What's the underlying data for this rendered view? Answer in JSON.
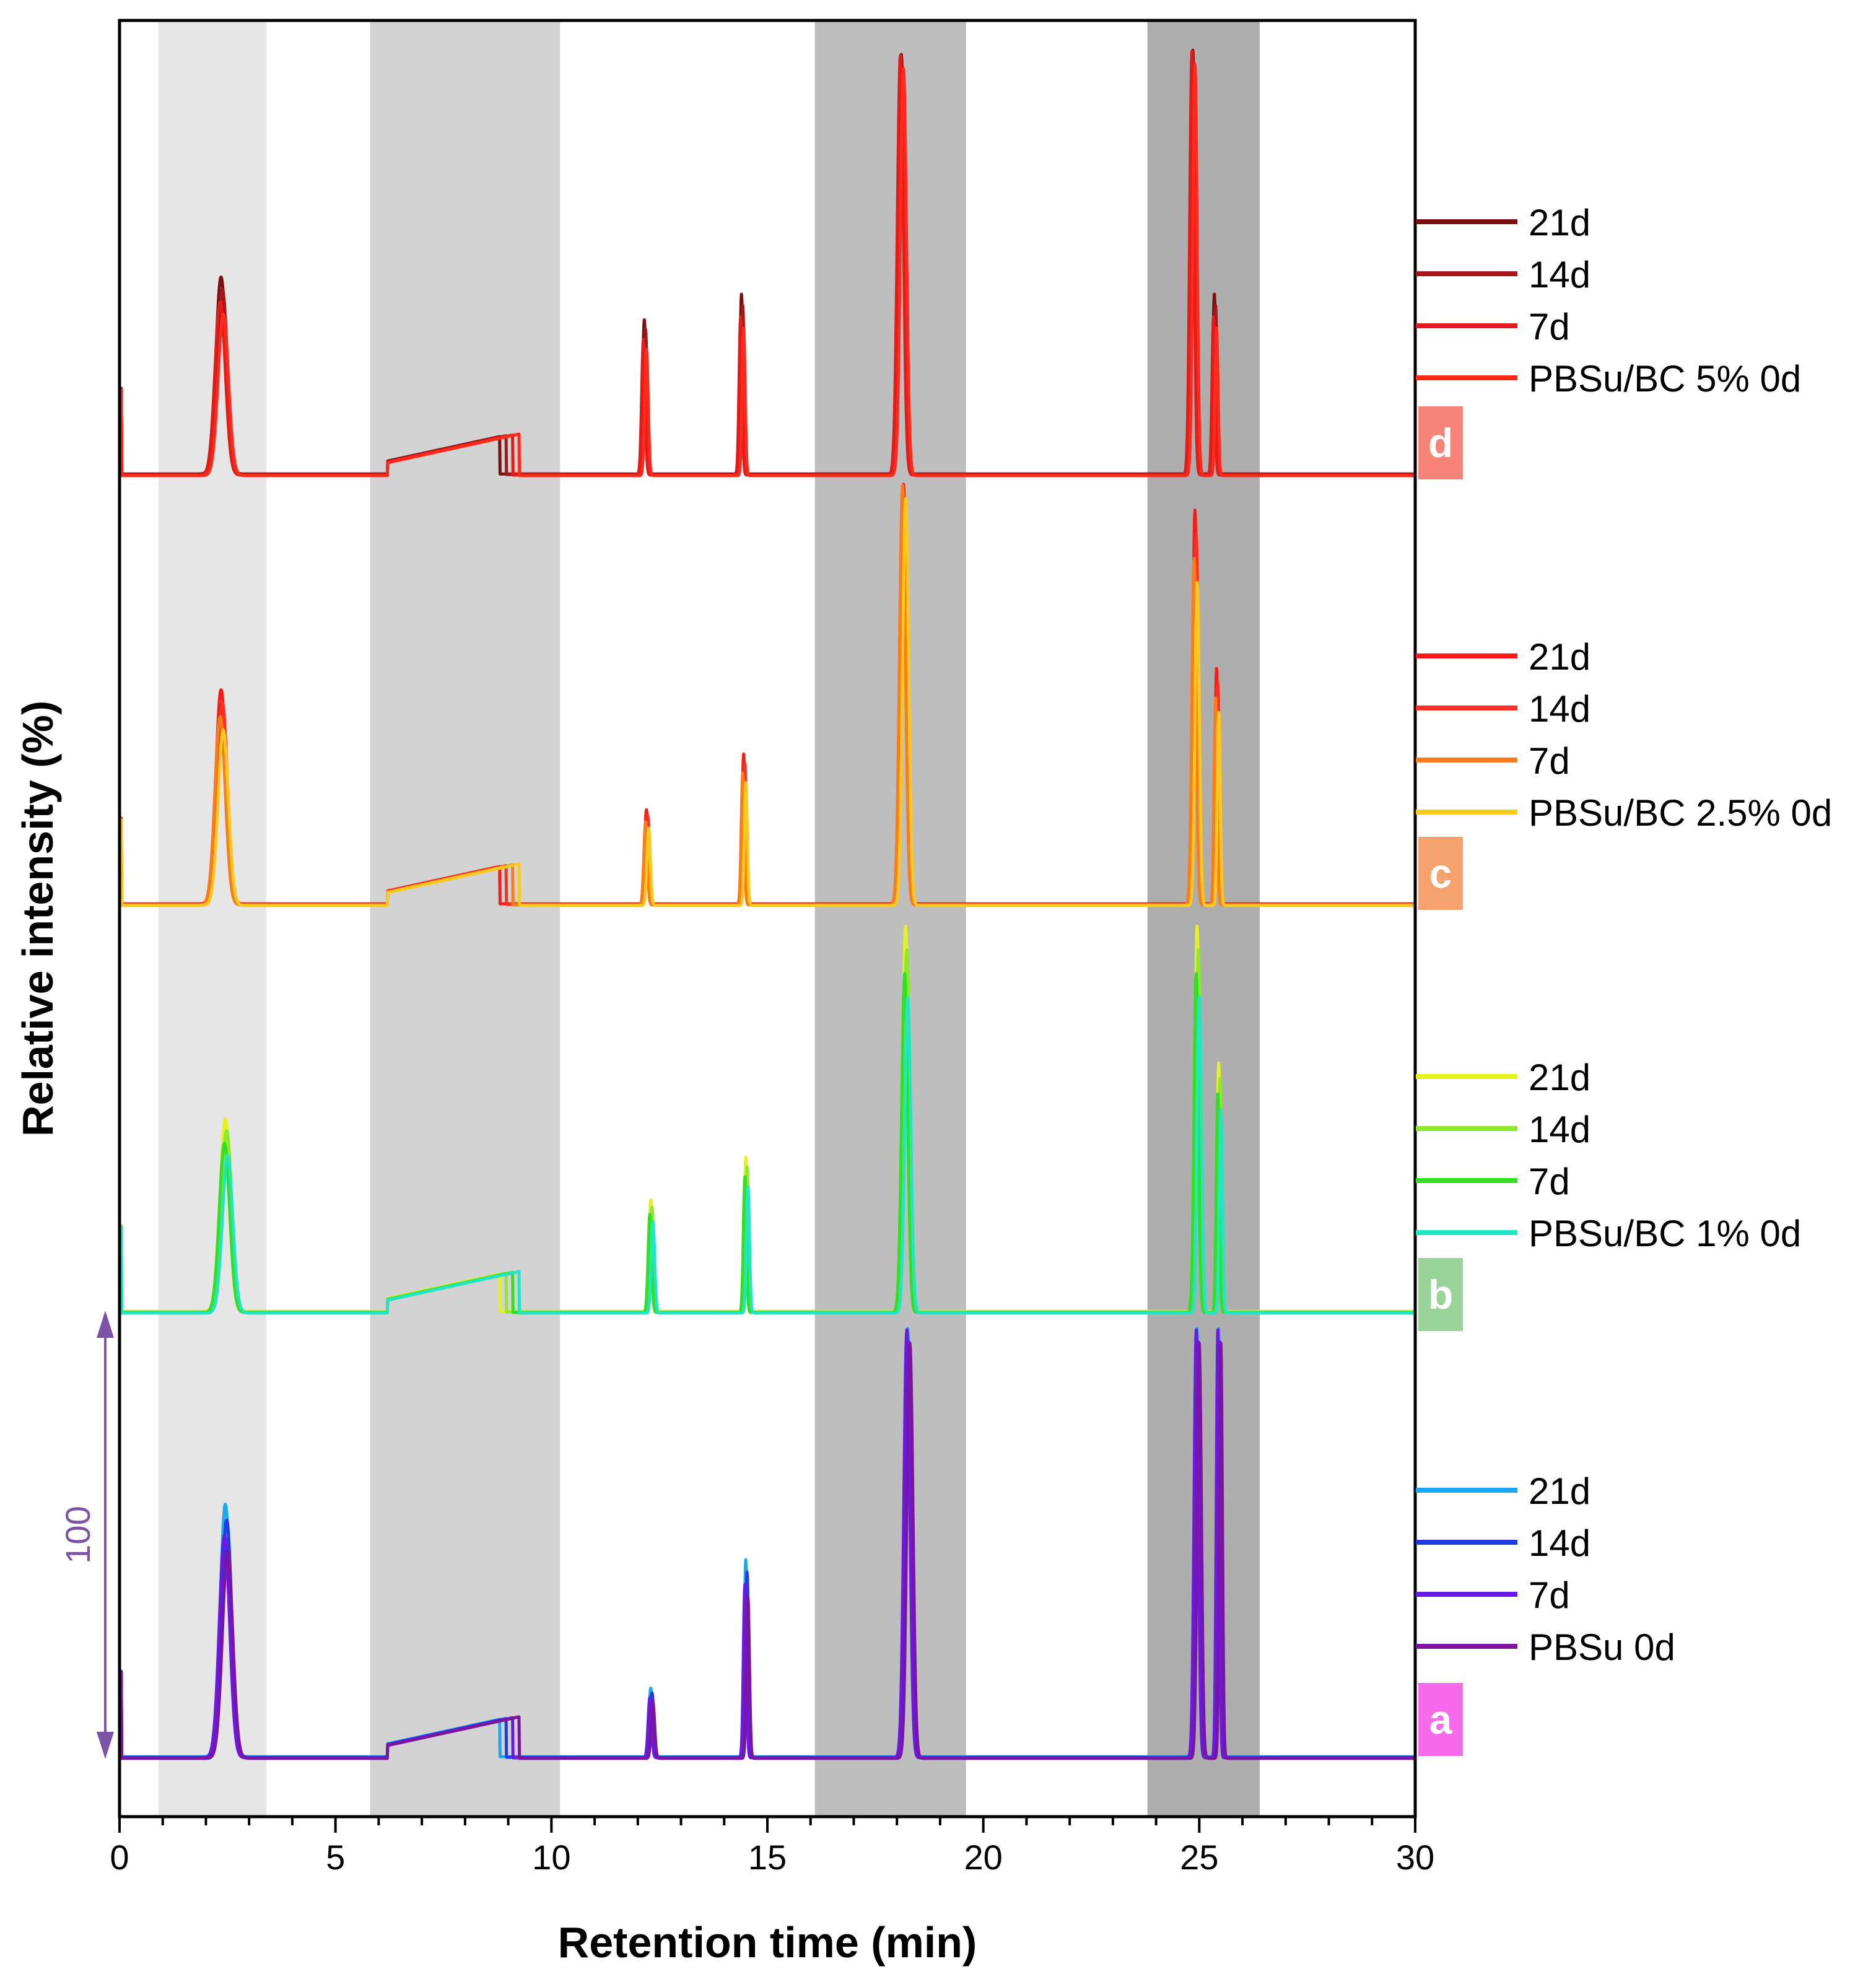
{
  "chart_data": {
    "type": "line",
    "title": "",
    "xlabel": "Retention time (min)",
    "ylabel": "Relative intensity (%)",
    "xlim": [
      0,
      30
    ],
    "x_ticks": [
      0,
      5,
      10,
      15,
      20,
      25,
      30
    ],
    "scale_bar": {
      "label": "100",
      "value": 100,
      "color": "#7B52A8"
    },
    "shaded_regions": [
      {
        "x0": 0.9,
        "x1": 3.4,
        "shade": "#E6E6E6"
      },
      {
        "x0": 5.8,
        "x1": 10.2,
        "shade": "#D3D3D3"
      },
      {
        "x0": 16.1,
        "x1": 19.6,
        "shade": "#BEBEBE"
      },
      {
        "x0": 23.8,
        "x1": 26.4,
        "shade": "#AEAEAE"
      }
    ],
    "panels": [
      {
        "panel": "d",
        "badge_color": "#F68377",
        "series": [
          {
            "name": "21d",
            "color": "#7B0E0E"
          },
          {
            "name": "14d",
            "color": "#A8161A"
          },
          {
            "name": "7d",
            "color": "#E21B1B"
          },
          {
            "name": "PBSu/BC 5% 0d",
            "color": "#FF2A1C"
          }
        ],
        "peaks": [
          {
            "rt": 2.35,
            "height": 46,
            "width": 0.12
          },
          {
            "rt": 12.15,
            "height": 36,
            "width": 0.04
          },
          {
            "rt": 14.4,
            "height": 42,
            "width": 0.035
          },
          {
            "rt": 18.1,
            "height": 98,
            "width": 0.07
          },
          {
            "rt": 24.85,
            "height": 99,
            "width": 0.05
          },
          {
            "rt": 25.35,
            "height": 42,
            "width": 0.035
          }
        ]
      },
      {
        "panel": "c",
        "badge_color": "#F6A26E",
        "series": [
          {
            "name": "21d",
            "color": "#FF1A1A"
          },
          {
            "name": "14d",
            "color": "#FF3020"
          },
          {
            "name": "7d",
            "color": "#FF7A1A"
          },
          {
            "name": "PBSu/BC 2.5% 0d",
            "color": "#FFC81E"
          }
        ],
        "peaks": [
          {
            "rt": 2.35,
            "height": 50,
            "width": 0.12
          },
          {
            "rt": 12.2,
            "height": 22,
            "width": 0.04
          },
          {
            "rt": 14.45,
            "height": 35,
            "width": 0.035
          },
          {
            "rt": 18.15,
            "height": 98,
            "width": 0.07
          },
          {
            "rt": 24.9,
            "height": 92,
            "width": 0.05
          },
          {
            "rt": 25.4,
            "height": 55,
            "width": 0.035
          }
        ]
      },
      {
        "panel": "b",
        "badge_color": "#98D39A",
        "series": [
          {
            "name": "21d",
            "color": "#E4F21E"
          },
          {
            "name": "14d",
            "color": "#8EE830"
          },
          {
            "name": "7d",
            "color": "#32E01E"
          },
          {
            "name": "PBSu/BC 1% 0d",
            "color": "#22E6C2"
          }
        ],
        "peaks": [
          {
            "rt": 2.45,
            "height": 45,
            "width": 0.12
          },
          {
            "rt": 12.3,
            "height": 26,
            "width": 0.04
          },
          {
            "rt": 14.5,
            "height": 36,
            "width": 0.035
          },
          {
            "rt": 18.2,
            "height": 90,
            "width": 0.07
          },
          {
            "rt": 24.95,
            "height": 90,
            "width": 0.05
          },
          {
            "rt": 25.45,
            "height": 58,
            "width": 0.035
          }
        ]
      },
      {
        "panel": "a",
        "badge_color": "#F76BEA",
        "series": [
          {
            "name": "21d",
            "color": "#1AA8F0"
          },
          {
            "name": "14d",
            "color": "#1E3CE6"
          },
          {
            "name": "7d",
            "color": "#6A18E6"
          },
          {
            "name": "PBSu 0d",
            "color": "#7A169E"
          }
        ],
        "peaks": [
          {
            "rt": 2.45,
            "height": 59,
            "width": 0.12
          },
          {
            "rt": 12.3,
            "height": 16,
            "width": 0.04
          },
          {
            "rt": 14.5,
            "height": 46,
            "width": 0.035
          },
          {
            "rt": 18.25,
            "height": 100,
            "width": 0.07
          },
          {
            "rt": 24.95,
            "height": 100,
            "width": 0.05
          },
          {
            "rt": 25.45,
            "height": 100,
            "width": 0.035
          }
        ]
      }
    ]
  }
}
